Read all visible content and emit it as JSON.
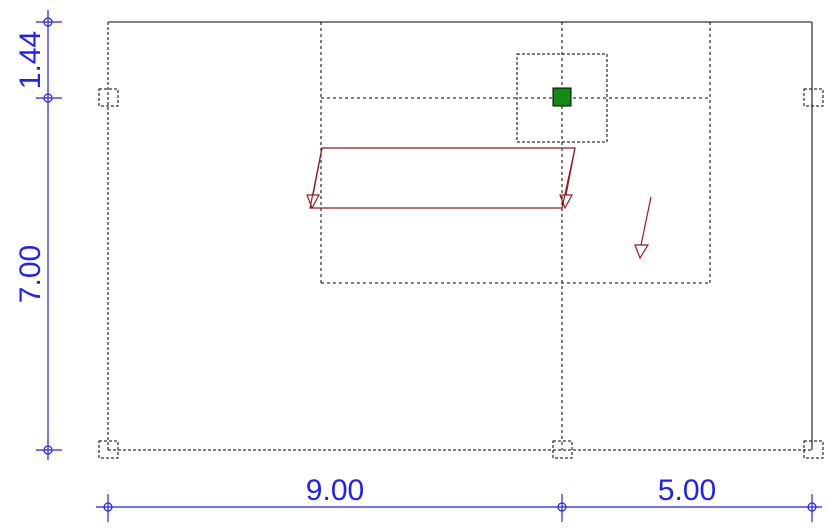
{
  "colors": {
    "dimension": "#1f1fff",
    "outline": "#000000",
    "load": "#9b1b1b",
    "marker_fill": "#148a14",
    "marker_stroke": "#000000",
    "dashed": "#000000"
  },
  "dimensions": {
    "horizontal": [
      {
        "label": "9.00",
        "value": 9.0
      },
      {
        "label": "5.00",
        "value": 5.0
      }
    ],
    "vertical": [
      {
        "label": "1.44",
        "value": 1.44
      },
      {
        "label": "7.00",
        "value": 7.0
      }
    ]
  }
}
